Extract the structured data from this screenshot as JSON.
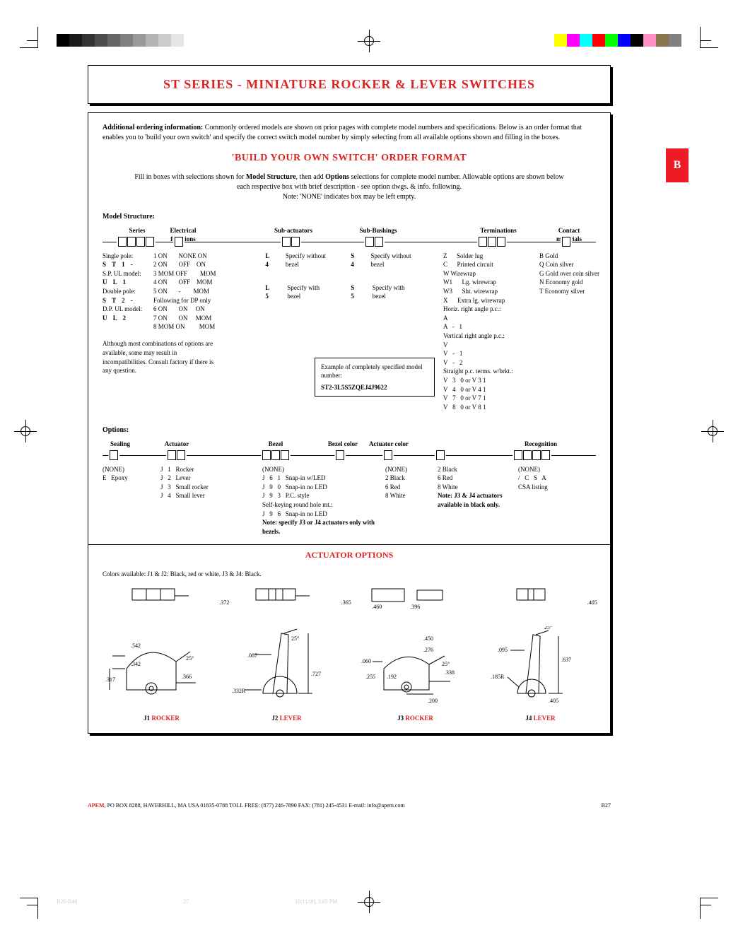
{
  "printer_colors_left": [
    "#000000",
    "#1a1a1a",
    "#333333",
    "#4d4d4d",
    "#666666",
    "#808080",
    "#999999",
    "#b3b3b3",
    "#cccccc",
    "#e6e6e6"
  ],
  "printer_colors_right": [
    "#ffff00",
    "#ff00ff",
    "#00ffff",
    "#ff0000",
    "#00ff00",
    "#0000ff",
    "#000000",
    "#ff8fc6",
    "#86754d",
    "#808080"
  ],
  "title": "ST SERIES - MINIATURE ROCKER & LEVER SWITCHES",
  "tab_letter": "B",
  "intro_bold": "Additional ordering information:",
  "intro_text": " Commonly ordered models are shown on prior pages with complete model numbers and specifications. Below is an order format that enables you to 'build your own switch' and specify the correct switch model number by simply selecting from all available options shown and filling in the boxes.",
  "build_title": "'BUILD YOUR OWN SWITCH' ORDER FORMAT",
  "instructions_1": "Fill in boxes with selections shown for ",
  "instructions_b1": "Model Structure",
  "instructions_2": ", then add ",
  "instructions_b2": "Options",
  "instructions_3": " selections for complete model number. Allowable options are shown below each respective box with brief description - see option dwgs. & info. following.",
  "instructions_4": "Note: 'NONE' indicates box may be left empty.",
  "model_structure_label": "Model Structure:",
  "headers": {
    "series": "Series",
    "efunc": "Electrical\nfunctions",
    "subact": "Sub-actuators",
    "subbush": "Sub-Bushings",
    "term": "Terminations",
    "contact": "Contact\nmaterials"
  },
  "series_block": {
    "sp": "Single pole:",
    "st1": "S   T   1   -",
    "sp_ul": "S.P. UL model:",
    "ul1": "U   L   1",
    "dp": "Double pole:",
    "st2": "S   T   2   -",
    "dp_ul": "D.P. UL model:",
    "ul2": "U   L   2"
  },
  "efunc_rows": [
    "1 ON       NONE ON",
    "2 ON       OFF    ON",
    "3 MOM OFF        MOM",
    "4 ON       OFF    MOM",
    "5 ON       -        MOM",
    "Following for DP only",
    "6 ON       ON     ON",
    "7 ON       ON     MOM",
    "8 MOM ON         MOM"
  ],
  "subact": {
    "l4_code": "L   4",
    "l4_desc": "Specify without bezel",
    "l5_code": "L   5",
    "l5_desc": "Specify with bezel"
  },
  "subbush": {
    "s4_code": "S   4",
    "s4_desc": "Specify without bezel",
    "s5_code": "S   5",
    "s5_desc": "Specify with bezel"
  },
  "terminations": [
    "Z      Solder lug",
    "C      Printed circuit",
    "W Wirewrap",
    "W1      Lg. wirewrap",
    "W3      Sht. wirewrap",
    "X      Extra lg. wirewrap",
    "Horiz. right angle p.c.:",
    "A",
    "A   -   1",
    "Vertical right angle p.c.:",
    "V",
    "V   -   1",
    "V   -   2",
    "Straight p.c. terms. w/brkt.:",
    "V   3   0 or V 3 1",
    "V   4   0 or V 4 1",
    "V   7   0 or V 7 1",
    "V   8   0 or V 8 1"
  ],
  "contact_materials": [
    "B Gold",
    "Q Coin silver",
    "G Gold over coin silver",
    "N Economy gold",
    "T Economy silver"
  ],
  "compat_note": "Although most combinations of options are available, some may result in incompatibilities. Consult factory if there is any question.",
  "example_label": "Example of completely specified model number:",
  "example_model": "ST2-3L5S5ZQEJ4J9622",
  "options_label": "Options:",
  "opt_headers": {
    "sealing": "Sealing",
    "actuator": "Actuator",
    "bezel": "Bezel",
    "bcolor": "Bezel color",
    "acolor": "Actuator color",
    "recog": "Recognition"
  },
  "opt_sealing": [
    "(NONE)",
    "E   Epoxy"
  ],
  "opt_actuator": [
    "J   1   Rocker",
    "J   2   Lever",
    "J   3   Small rocker",
    "J   4   Small lever"
  ],
  "opt_bezel": [
    "(NONE)",
    "J   6   1   Snap-in w/LED",
    "J   9   0   Snap-in no LED",
    "J   9   3   P.C. style",
    "Self-keying round hole mt.:",
    "J   9   6   Snap-in no LED"
  ],
  "opt_bezel_note": "Note: specify J3 or J4 actuators only with bezels.",
  "opt_bcolor": [
    "(NONE)",
    "2 Black",
    "6 Red",
    "8 White"
  ],
  "opt_acolor": [
    "2 Black",
    "6 Red",
    "8 White"
  ],
  "opt_acolor_note": "Note: J3 & J4 actuators available in black only.",
  "opt_recog": [
    "(NONE)",
    "/   C   S   A",
    "CSA listing"
  ],
  "actuator_title": "ACTUATOR OPTIONS",
  "actuator_colors_note": "Colors available: J1 & J2: Black, red or white. J3 & J4: Black.",
  "diag_top": {
    "j1": ".372",
    "j2": ".365",
    "j3a": ".460",
    "j3b": ".396",
    "j4": ".405"
  },
  "diag_labels": {
    "j1": "J1  ROCKER",
    "j2": "J2  LEVER",
    "j3": "J3  ROCKER",
    "j4": "J4  LEVER"
  },
  "diag_dims": {
    "j1": {
      "a": ".542",
      "b": ".342",
      "c": ".25°",
      "d": ".366",
      "e": ".317"
    },
    "j2": {
      "a": "25°",
      "b": ".087",
      "c": ".332R",
      "d": ".727"
    },
    "j3": {
      "a": ".450",
      "b": ".276",
      "c": ".060",
      "d": ".255",
      "e": ".192",
      "f": "25°",
      "g": ".338",
      "h": ".200"
    },
    "j4": {
      "a": "25°",
      "b": ".095",
      "c": ".185R",
      "d": ".637",
      "e": ".405"
    }
  },
  "footer": {
    "brand": "APEM",
    "addr": ", PO BOX 8288, HAVERHILL, MA USA 01835-0788  TOLL FREE: (877) 246-7890  FAX: (781) 245-4531  E-mail: info@apem.com",
    "page": "B27"
  },
  "print_meta": {
    "a": "B26-B40",
    "b": "27",
    "c": "10/11/00, 3:05 PM"
  }
}
